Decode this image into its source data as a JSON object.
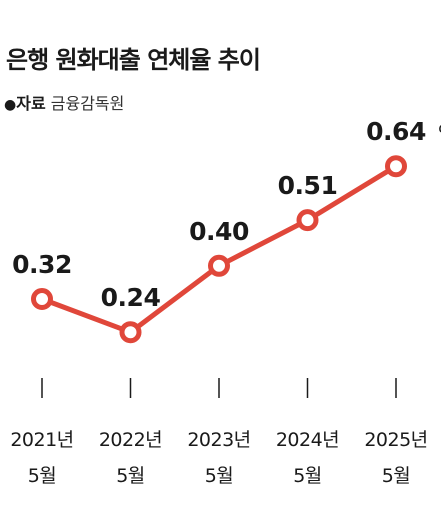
{
  "title": "은행 원화대출 연체율 추이",
  "source": {
    "bullet": "●",
    "label": "자료",
    "name": "금융감독원"
  },
  "chart_data": {
    "type": "line",
    "categories": [
      [
        "2021년",
        "5월"
      ],
      [
        "2022년",
        "5월"
      ],
      [
        "2023년",
        "5월"
      ],
      [
        "2024년",
        "5월"
      ],
      [
        "2025년",
        "5월"
      ]
    ],
    "values": [
      0.32,
      0.24,
      0.4,
      0.51,
      0.64
    ],
    "value_labels": [
      "0.32",
      "0.24",
      "0.40",
      "0.51",
      "0.64"
    ],
    "unit": "%",
    "line_color": "#e0473a",
    "grid": false,
    "legend": "none"
  }
}
